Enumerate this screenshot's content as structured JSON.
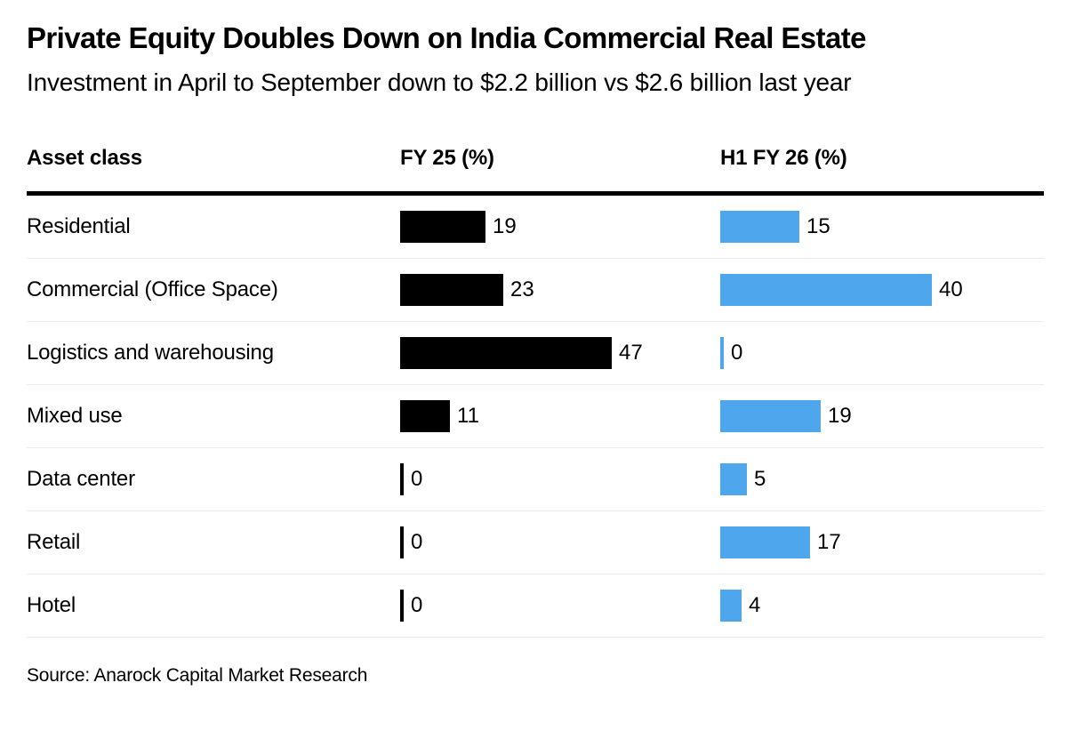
{
  "header": {
    "title": "Private Equity Doubles Down on India Commercial Real Estate",
    "subtitle": "Investment in April to September down to $2.2 billion vs $2.6 billion last year"
  },
  "table": {
    "columns": [
      "Asset class",
      "FY 25 (%)",
      "H1 FY 26 (%)"
    ]
  },
  "chart_data": {
    "type": "bar",
    "orientation": "horizontal",
    "title": "Private Equity Doubles Down on India Commercial Real Estate",
    "subtitle": "Investment in April to September down to $2.2 billion vs $2.6 billion last year",
    "categories": [
      "Residential",
      "Commercial (Office Space)",
      "Logistics and warehousing",
      "Mixed use",
      "Data center",
      "Retail",
      "Hotel"
    ],
    "series": [
      {
        "name": "FY 25 (%)",
        "color": "#000000",
        "values": [
          19,
          23,
          47,
          11,
          0,
          0,
          0
        ],
        "scale_max": 47
      },
      {
        "name": "H1 FY 26 (%)",
        "color": "#4ea7ec",
        "values": [
          15,
          40,
          0,
          19,
          5,
          17,
          4
        ],
        "scale_max": 40
      }
    ],
    "value_labels": true,
    "grid": false,
    "legend_position": "column-headers",
    "note": "each column's bars scaled to its own column max"
  },
  "source": {
    "text": "Source: Anarock Capital Market Research"
  },
  "colors": {
    "bar_fy25": "#000000",
    "bar_h1fy26": "#4ea7ec",
    "header_rule": "#000000",
    "row_divider": "#ebebeb",
    "background": "#ffffff"
  }
}
